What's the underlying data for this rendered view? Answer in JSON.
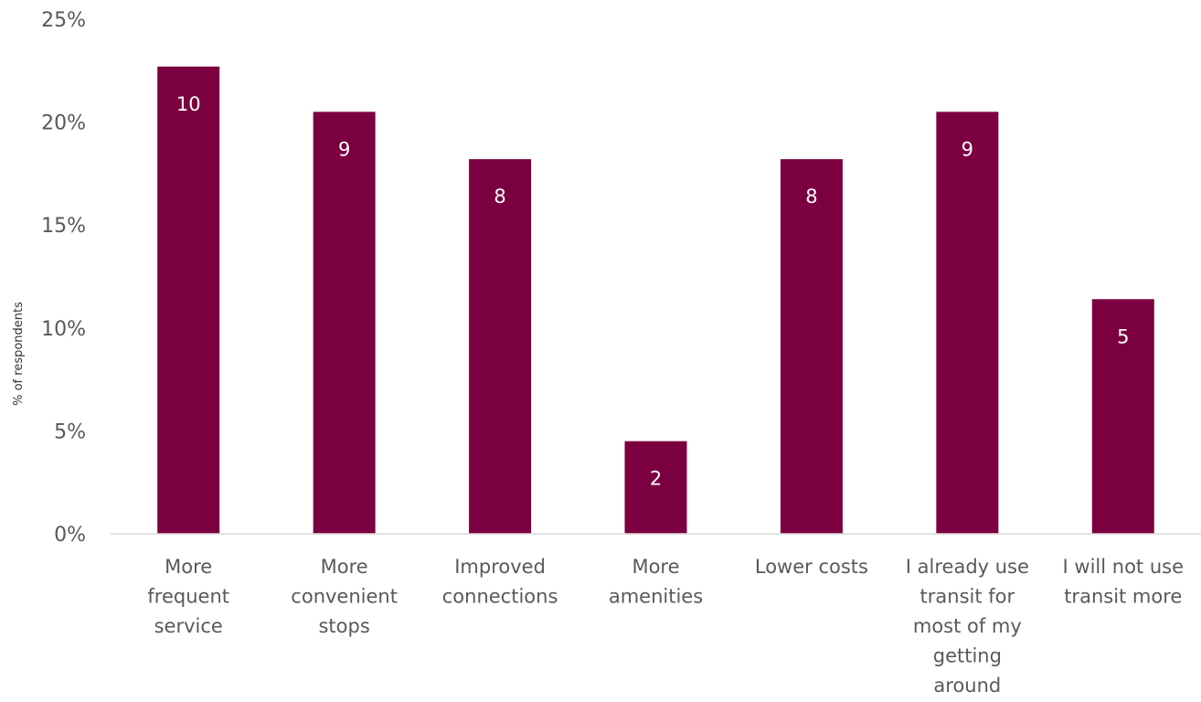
{
  "chart_data": {
    "type": "bar",
    "categories": [
      "More frequent service",
      "More convenient stops",
      "Improved connections",
      "More amenities",
      "Lower costs",
      "I already use transit for most of my getting around",
      "I will not use transit more"
    ],
    "category_lines": [
      [
        "More",
        "frequent",
        "service"
      ],
      [
        "More",
        "convenient",
        "stops"
      ],
      [
        "Improved",
        "connections"
      ],
      [
        "More",
        "amenities"
      ],
      [
        "Lower costs"
      ],
      [
        "I already use",
        "transit for",
        "most of my",
        "getting",
        "around"
      ],
      [
        "I will not use",
        "transit more"
      ]
    ],
    "values": [
      22.7,
      20.5,
      18.2,
      4.5,
      18.2,
      20.5,
      11.4
    ],
    "data_labels": [
      "10",
      "9",
      "8",
      "2",
      "8",
      "9",
      "5"
    ],
    "ylabel": "% of respondents",
    "ylim": [
      0,
      25
    ],
    "yticks": [
      0,
      5,
      10,
      15,
      20,
      25
    ],
    "ytick_labels": [
      "0%",
      "5%",
      "10%",
      "15%",
      "20%",
      "25%"
    ],
    "bar_color": "#7b003f",
    "axis_color": "#d9d9d9",
    "grid": false,
    "legend": "none"
  }
}
